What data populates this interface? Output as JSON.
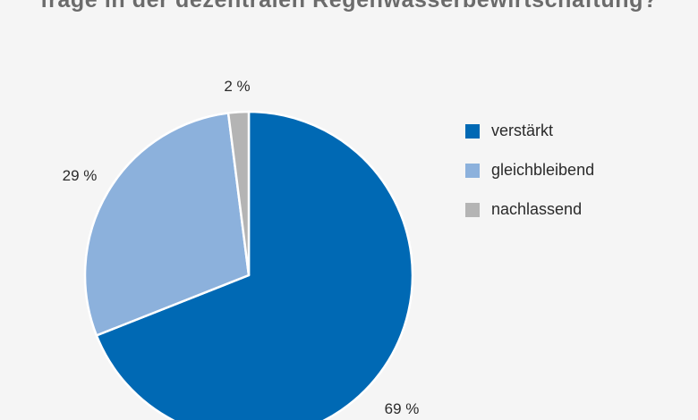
{
  "chart_data": {
    "type": "pie",
    "title": "frage in der dezentralen Regenwasserbewirtschaftung?",
    "legend_position": "right",
    "slices": [
      {
        "name": "verstärkt",
        "value": 69,
        "label": "69 %",
        "color": "#0069b4"
      },
      {
        "name": "gleichbleibend",
        "value": 29,
        "label": "29 %",
        "color": "#8cb1dc"
      },
      {
        "name": "nachlassend",
        "value": 2,
        "label": "2 %",
        "color": "#b4b4b4"
      }
    ]
  }
}
